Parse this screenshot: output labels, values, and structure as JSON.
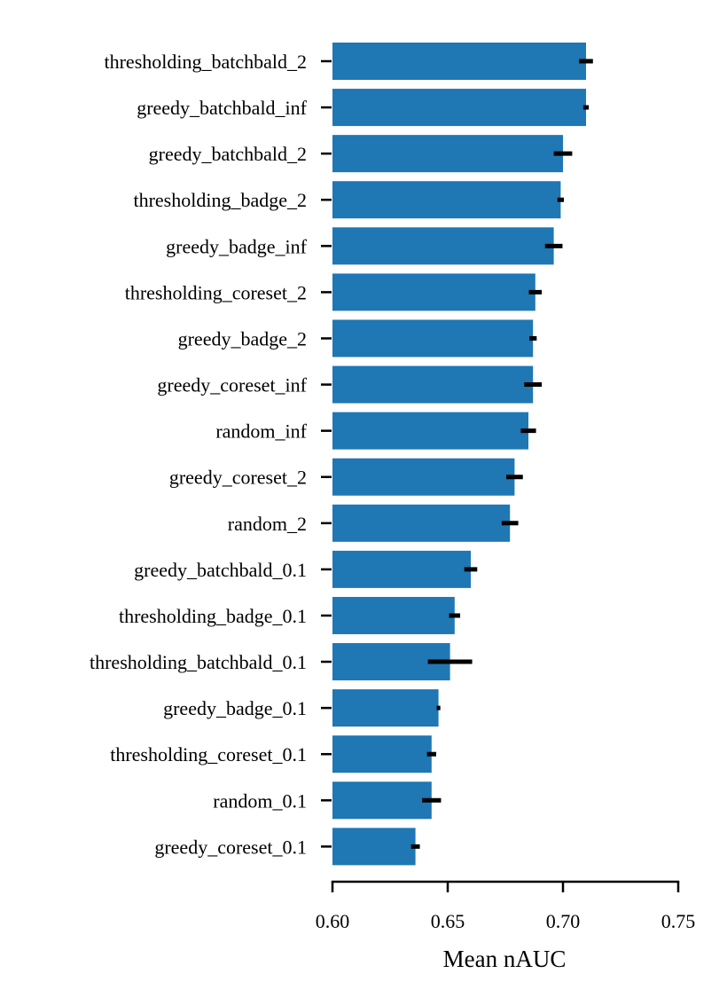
{
  "chart_data": {
    "type": "bar",
    "orientation": "horizontal",
    "title": "",
    "xlabel": "Mean nAUC",
    "ylabel": "",
    "xlim": [
      0.6,
      0.75
    ],
    "xticks": [
      0.6,
      0.65,
      0.7,
      0.75
    ],
    "xtick_labels": [
      "0.60",
      "0.65",
      "0.70",
      "0.75"
    ],
    "grid": false,
    "bar_color": "#1f77b4",
    "errorbar_color": "#000000",
    "categories": [
      "thresholding_batchbald_2",
      "greedy_batchbald_inf",
      "greedy_batchbald_2",
      "thresholding_badge_2",
      "greedy_badge_inf",
      "thresholding_coreset_2",
      "greedy_badge_2",
      "greedy_coreset_inf",
      "random_inf",
      "greedy_coreset_2",
      "random_2",
      "greedy_batchbald_0.1",
      "thresholding_badge_0.1",
      "thresholding_batchbald_0.1",
      "greedy_badge_0.1",
      "thresholding_coreset_0.1",
      "random_0.1",
      "greedy_coreset_0.1"
    ],
    "values": [
      0.71,
      0.71,
      0.7,
      0.699,
      0.696,
      0.688,
      0.687,
      0.687,
      0.685,
      0.679,
      0.677,
      0.66,
      0.653,
      0.651,
      0.646,
      0.643,
      0.643,
      0.636
    ],
    "errors": [
      0.003,
      0.0012,
      0.004,
      0.0014,
      0.0038,
      0.0028,
      0.0016,
      0.0038,
      0.0033,
      0.0036,
      0.0036,
      0.0028,
      0.0024,
      0.0096,
      0.0008,
      0.002,
      0.0041,
      0.0019
    ]
  }
}
